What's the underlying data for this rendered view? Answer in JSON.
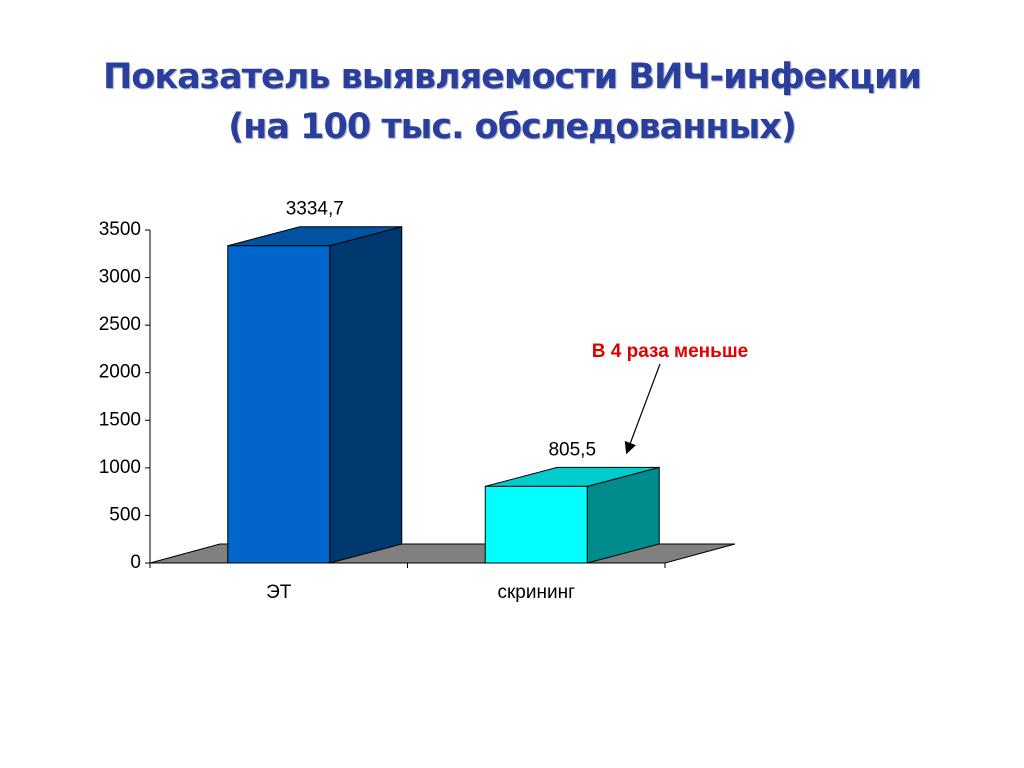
{
  "chart_data": {
    "type": "bar3d",
    "title": "Показатель выявляемости ВИЧ-инфекции (на 100 тыс. обследованных)",
    "categories": [
      "ЭТ",
      "скрининг"
    ],
    "values": [
      3334.7,
      805.5
    ],
    "value_labels": [
      "3334,7",
      "805,5"
    ],
    "colors": [
      "#0066cc",
      "#00ffff"
    ],
    "ylim": [
      0,
      3500
    ],
    "yticks": [
      0,
      500,
      1000,
      1500,
      2000,
      2500,
      3000,
      3500
    ],
    "annotation": "В 4 раза меньше"
  }
}
